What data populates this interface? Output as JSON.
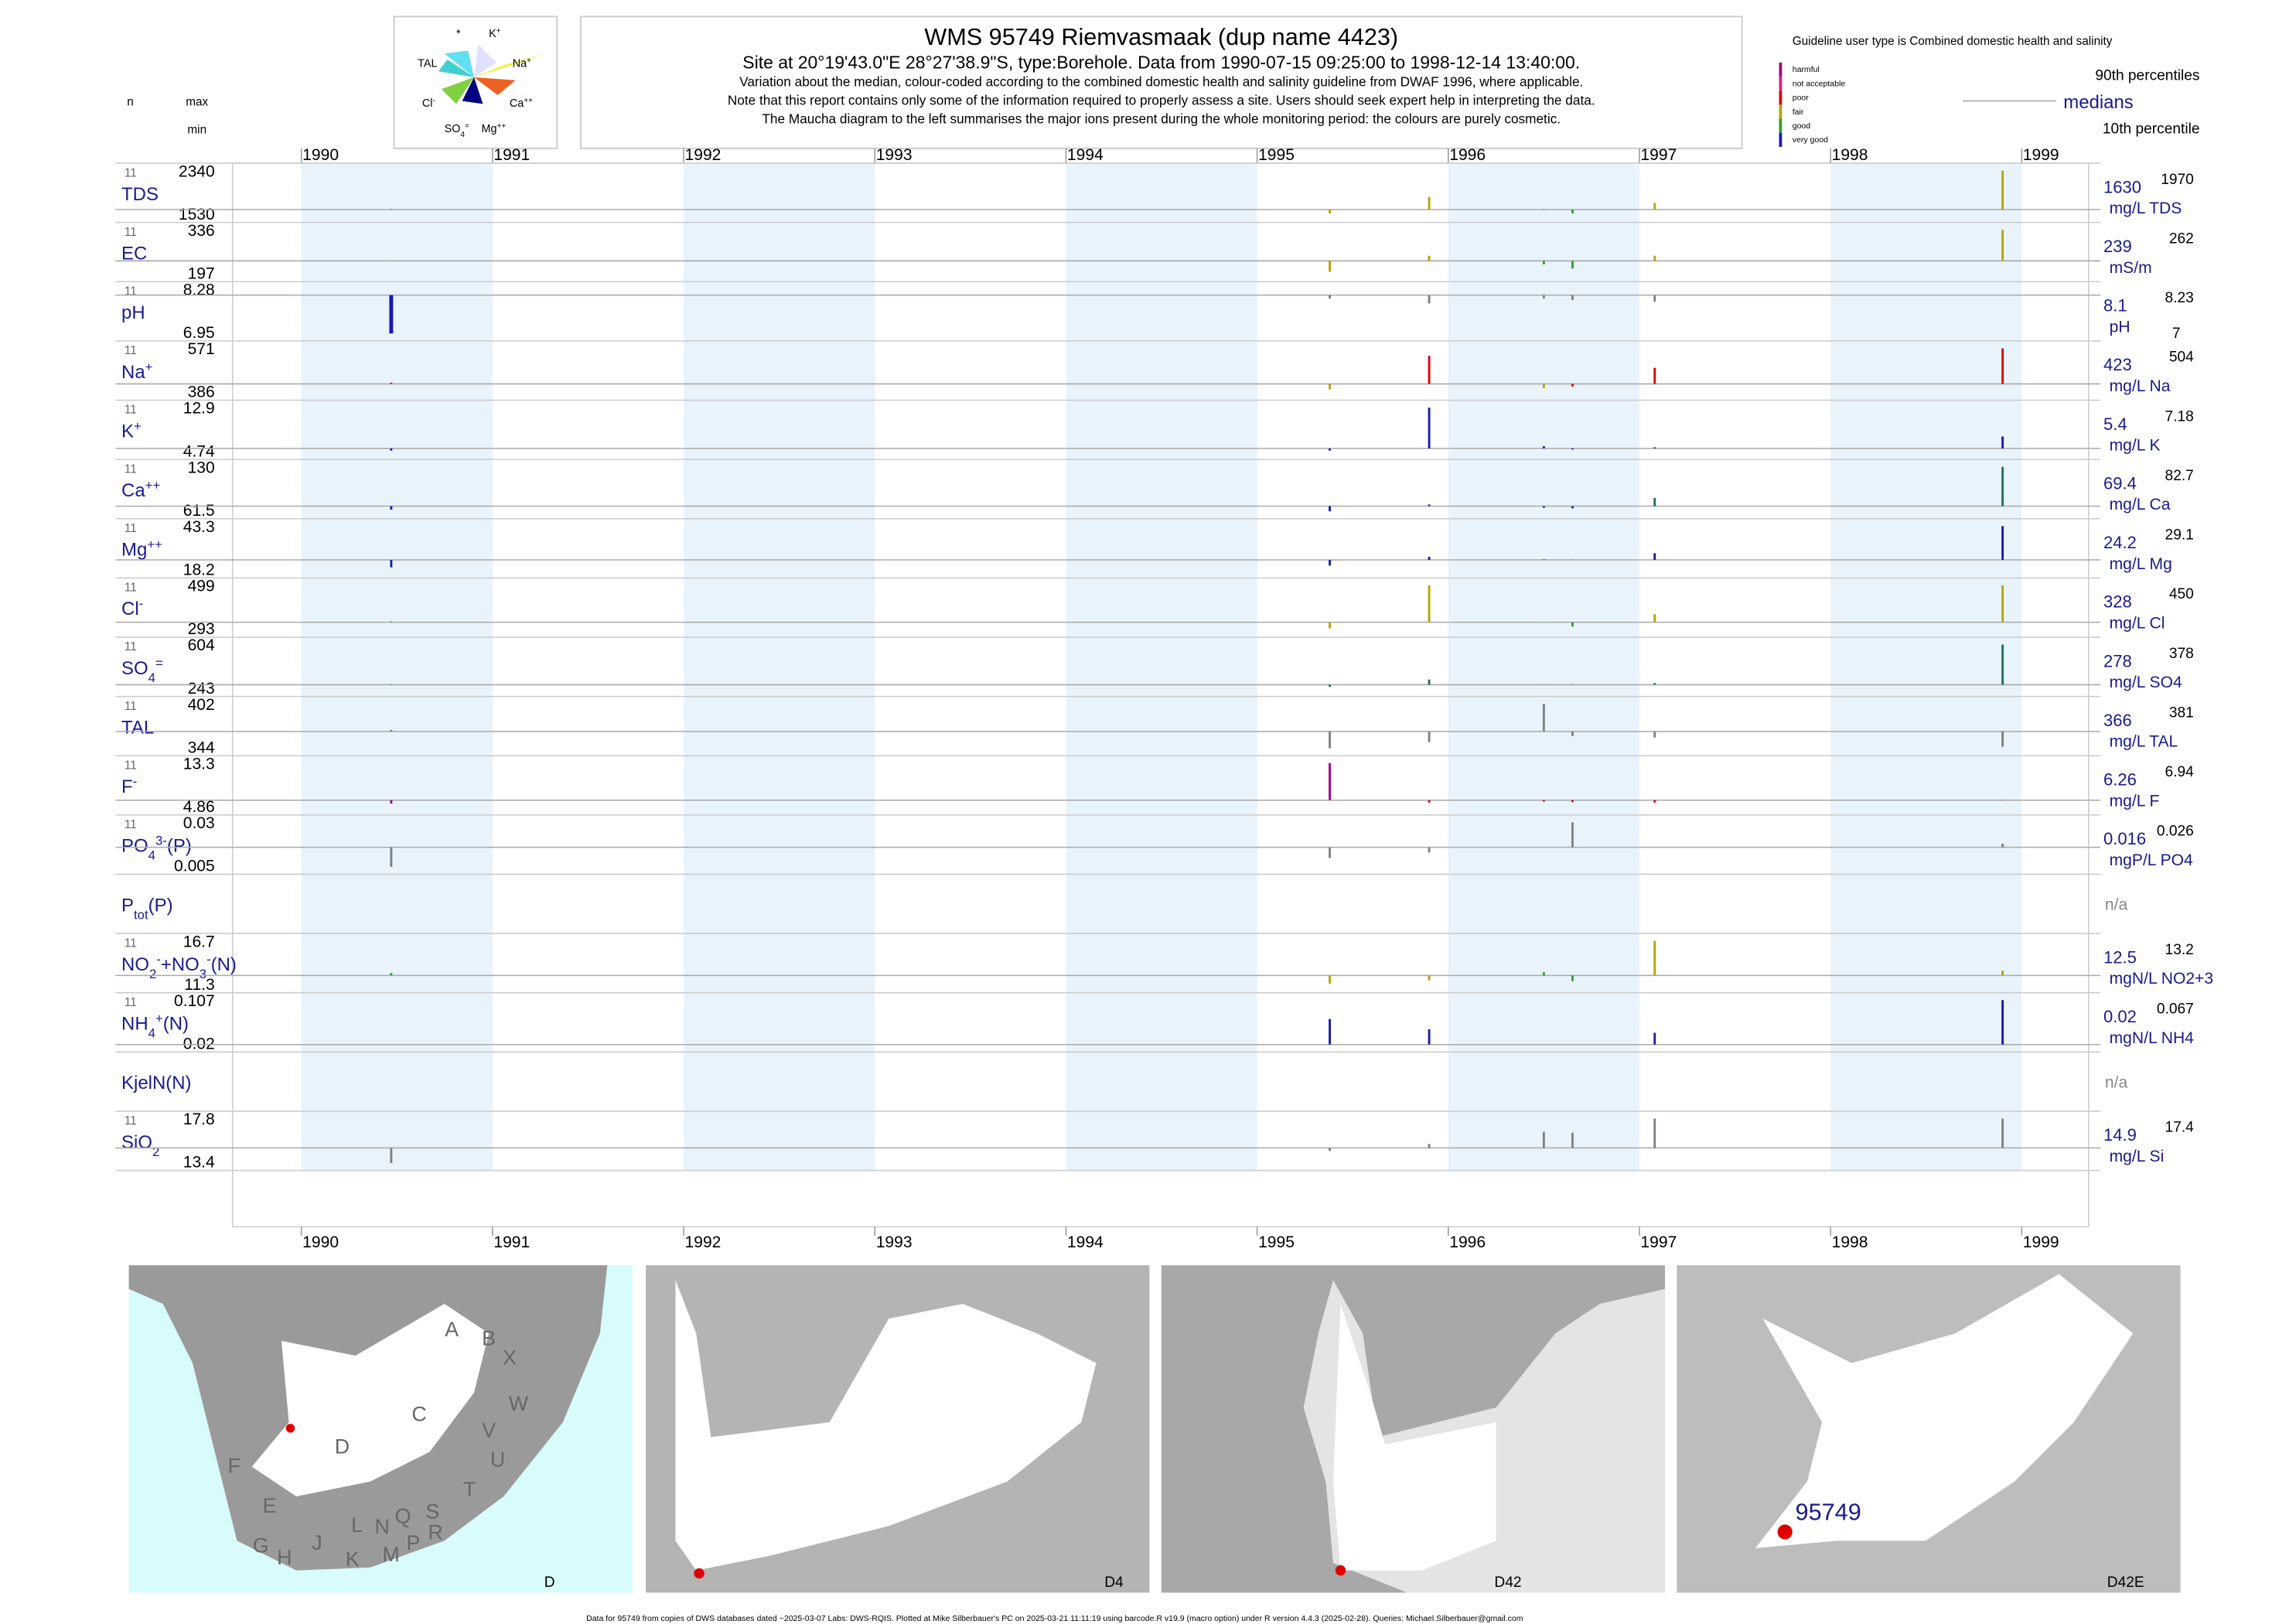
{
  "header": {
    "title": "WMS 95749  Riemvasmaak (dup name 4423)",
    "subtitle": "Site at 20°19'43.0\"E 28°27'38.9\"S, type:Borehole.  Data from 1990-07-15 09:25:00 to 1998-12-14 13:40:00.",
    "notes": [
      "Variation about the median,  colour-coded according to the combined domestic health and salinity guideline from DWAF 1996, where applicable.",
      "Note that this report contains only some of the information required to properly assess a site. Users should seek expert help in interpreting the data.",
      "The Maucha diagram to the left summarises the major ions present during the whole monitoring period: the colours are purely cosmetic."
    ],
    "col_n": "n",
    "col_max": "max",
    "col_min": "min"
  },
  "maucha": {
    "labels": [
      [
        {
          "text": "*"
        }
      ],
      [
        {
          "text": "K"
        },
        {
          "text": "+",
          "pos": "sup"
        }
      ],
      [
        {
          "text": "TAL"
        }
      ],
      [
        {
          "text": "Na"
        },
        {
          "text": "+",
          "pos": "sup"
        }
      ],
      [
        {
          "text": "Cl"
        },
        {
          "text": "-",
          "pos": "sup"
        }
      ],
      [
        {
          "text": "Ca"
        },
        {
          "text": "++",
          "pos": "sup"
        }
      ],
      [
        {
          "text": "SO"
        },
        {
          "text": "4",
          "pos": "sub"
        },
        {
          "text": "=",
          "pos": "sup"
        }
      ],
      [
        {
          "text": "Mg"
        },
        {
          "text": "++",
          "pos": "sup"
        }
      ]
    ]
  },
  "legend": {
    "guideline": "Guideline user type is Combined domestic health and salinity",
    "classes": [
      {
        "name": "harmful",
        "color": "#a0008c"
      },
      {
        "name": "not acceptable",
        "color": "#e0207a"
      },
      {
        "name": "poor",
        "color": "#e00000"
      },
      {
        "name": "fair",
        "color": "#b8a400"
      },
      {
        "name": "good",
        "color": "#30a030"
      },
      {
        "name": "very good",
        "color": "#1a1ab0"
      }
    ],
    "p90": "90th percentiles",
    "median": "medians",
    "p10": "10th percentile"
  },
  "chart_data": {
    "type": "barcode",
    "xlim": [
      1989.64,
      1999.35
    ],
    "xticks": [
      1990,
      1991,
      1992,
      1993,
      1994,
      1995,
      1996,
      1997,
      1998,
      1999
    ],
    "shade": "#e8f3fc",
    "samples": [
      1990.47,
      1995.38,
      1995.9,
      1996.5,
      1996.65,
      1997.08,
      1998.9
    ],
    "rows": [
      {
        "label": [
          {
            "text": "TDS"
          }
        ],
        "n": 11,
        "max": 2340,
        "min": 1530,
        "median": 1630,
        "p90": 1970,
        "unit": "mg/L TDS",
        "values": [
          1640,
          1560,
          1860,
          1640,
          1560,
          1750,
          2340
        ],
        "colors": [
          "#30a030",
          "#b8a400",
          "#b8a400",
          "#30a030",
          "#30a030",
          "#b8a400",
          "#b8a400"
        ]
      },
      {
        "label": [
          {
            "text": "EC"
          }
        ],
        "n": 11,
        "max": 336,
        "min": 197,
        "median": 239,
        "p90": 262,
        "unit": "mS/m",
        "values": [
          240,
          205,
          255,
          228,
          215,
          255,
          336
        ],
        "colors": [
          "#30a030",
          "#b8a400",
          "#b8a400",
          "#30a030",
          "#30a030",
          "#b8a400",
          "#b8a400"
        ]
      },
      {
        "label": [
          {
            "text": "pH"
          }
        ],
        "n": 11,
        "max": 8.28,
        "min": 6.95,
        "median": 8.1,
        "p90": 8.23,
        "p10": 7,
        "unit": "pH",
        "values": [
          6.95,
          8.0,
          7.85,
          8.0,
          7.95,
          7.9,
          8.1
        ],
        "colors": [
          "#1a1ab0",
          "#808080",
          "#808080",
          "#808080",
          "#808080",
          "#808080",
          "#808080"
        ]
      },
      {
        "label": [
          {
            "text": "Na"
          },
          {
            "text": "+",
            "pos": "sup"
          }
        ],
        "n": 11,
        "max": 571,
        "min": 386,
        "median": 423,
        "p90": 504,
        "unit": "mg/L Na",
        "values": [
          428,
          400,
          540,
          405,
          412,
          490,
          571
        ],
        "colors": [
          "#e00000",
          "#b8a400",
          "#e00000",
          "#b8a400",
          "#e00000",
          "#e00000",
          "#e00000"
        ]
      },
      {
        "label": [
          {
            "text": "K"
          },
          {
            "text": "+",
            "pos": "sup"
          }
        ],
        "n": 11,
        "max": 12.9,
        "min": 4.74,
        "median": 5.4,
        "p90": 7.18,
        "unit": "mg/L K",
        "values": [
          5.0,
          5.0,
          12.9,
          5.8,
          5.2,
          5.6,
          7.6
        ],
        "colors": [
          "#1a1ab0",
          "#1a1ab0",
          "#1a1ab0",
          "#1a1ab0",
          "#1a1ab0",
          "#1a1ab0",
          "#1a1ab0"
        ]
      },
      {
        "label": [
          {
            "text": "Ca"
          },
          {
            "text": "++",
            "pos": "sup"
          }
        ],
        "n": 11,
        "max": 130,
        "min": 61.5,
        "median": 69.4,
        "p90": 82.7,
        "unit": "mg/L Ca",
        "values": [
          64,
          61.5,
          72,
          67,
          66,
          82,
          130
        ],
        "colors": [
          "#1a1ab0",
          "#1a1ab0",
          "#1a1ab0",
          "#1a1ab0",
          "#1a1ab0",
          "#207060",
          "#207060"
        ]
      },
      {
        "label": [
          {
            "text": "Mg"
          },
          {
            "text": "++",
            "pos": "sup"
          }
        ],
        "n": 11,
        "max": 43.3,
        "min": 18.2,
        "median": 24.2,
        "p90": 29.1,
        "unit": "mg/L Mg",
        "values": [
          20,
          21,
          26,
          24.5,
          24.3,
          28,
          43.3
        ],
        "colors": [
          "#1a1ab0",
          "#1a1ab0",
          "#1a1ab0",
          "#1a1ab0",
          "#1a1ab0",
          "#1a1ab0",
          "#1a1ab0"
        ]
      },
      {
        "label": [
          {
            "text": "Cl"
          },
          {
            "text": "-",
            "pos": "sup"
          }
        ],
        "n": 11,
        "max": 499,
        "min": 293,
        "median": 328,
        "p90": 450,
        "unit": "mg/L Cl",
        "values": [
          332,
          300,
          499,
          330,
          308,
          365,
          499
        ],
        "colors": [
          "#30a030",
          "#b8a400",
          "#b8a400",
          "#30a030",
          "#30a030",
          "#b8a400",
          "#b8a400"
        ]
      },
      {
        "label": [
          {
            "text": "SO"
          },
          {
            "text": "4",
            "pos": "sub"
          },
          {
            "text": "=",
            "pos": "sup"
          }
        ],
        "n": 11,
        "max": 604,
        "min": 243,
        "median": 278,
        "p90": 378,
        "unit": "mg/L SO4",
        "values": [
          282,
          260,
          320,
          281,
          275,
          292,
          604
        ],
        "colors": [
          "#207060",
          "#207060",
          "#207060",
          "#207060",
          "#207060",
          "#207060",
          "#207060"
        ]
      },
      {
        "label": [
          {
            "text": "TAL"
          }
        ],
        "n": 11,
        "max": 402,
        "min": 344,
        "median": 366,
        "p90": 381,
        "unit": "mg/L TAL",
        "values": [
          368,
          344,
          352,
          402,
          360,
          358,
          346
        ],
        "colors": [
          "#808080",
          "#808080",
          "#808080",
          "#808080",
          "#808080",
          "#808080",
          "#808080"
        ]
      },
      {
        "label": [
          {
            "text": "F"
          },
          {
            "text": "-",
            "pos": "sup"
          }
        ],
        "n": 11,
        "max": 13.3,
        "min": 4.86,
        "median": 6.26,
        "p90": 6.94,
        "unit": "mg/L F",
        "values": [
          5.6,
          13.3,
          5.8,
          6.0,
          5.9,
          5.8,
          6.3
        ],
        "colors": [
          "#a0008c",
          "#a0008c",
          "#e00000",
          "#e00000",
          "#e00000",
          "#e00000",
          "#e00000"
        ]
      },
      {
        "label": [
          {
            "text": "PO"
          },
          {
            "text": "4",
            "pos": "sub"
          },
          {
            "text": "3-",
            "pos": "sup"
          },
          {
            "text": "(P)"
          }
        ],
        "n": 11,
        "max": 0.03,
        "min": 0.005,
        "median": 0.016,
        "p90": 0.026,
        "unit": "mgP/L PO4",
        "values": [
          0.005,
          0.01,
          0.013,
          0.016,
          0.03,
          0.016,
          0.018
        ],
        "colors": [
          "#808080",
          "#808080",
          "#808080",
          "#808080",
          "#808080",
          "#808080",
          "#808080"
        ]
      },
      {
        "label": [
          {
            "text": "P"
          },
          {
            "text": "tot",
            "pos": "sub"
          },
          {
            "text": "(P)"
          }
        ],
        "status": "n/a"
      },
      {
        "label": [
          {
            "text": "NO"
          },
          {
            "text": "2",
            "pos": "sub"
          },
          {
            "text": "-",
            "pos": "sup"
          },
          {
            "text": "+NO"
          },
          {
            "text": "3",
            "pos": "sub"
          },
          {
            "text": "-",
            "pos": "sup"
          },
          {
            "text": "(N)"
          }
        ],
        "n": 11,
        "max": 16.7,
        "min": 11.3,
        "median": 12.5,
        "p90": 13.2,
        "unit": "mgN/L NO2+3",
        "values": [
          12.8,
          11.5,
          11.9,
          12.9,
          11.8,
          16.7,
          13.1
        ],
        "colors": [
          "#30a030",
          "#b8a400",
          "#b8a400",
          "#30a030",
          "#30a030",
          "#b8a400",
          "#b8a400"
        ]
      },
      {
        "label": [
          {
            "text": "NH"
          },
          {
            "text": "4",
            "pos": "sub"
          },
          {
            "text": "+",
            "pos": "sup"
          },
          {
            "text": "(N)"
          }
        ],
        "n": 11,
        "max": 0.107,
        "min": 0.02,
        "median": 0.02,
        "p90": 0.067,
        "unit": "mgN/L NH4",
        "values": [
          0.02,
          0.07,
          0.05,
          0.02,
          0.02,
          0.043,
          0.107
        ],
        "colors": [
          "#1a1ab0",
          "#1a1ab0",
          "#1a1ab0",
          "#1a1ab0",
          "#1a1ab0",
          "#1a1ab0",
          "#1a1ab0"
        ]
      },
      {
        "label": [
          {
            "text": "KjelN(N)"
          }
        ],
        "status": "n/a"
      },
      {
        "label": [
          {
            "text": "SiO"
          },
          {
            "text": "2",
            "pos": "sub"
          }
        ],
        "n": 11,
        "max": 17.8,
        "min": 13.4,
        "median": 14.9,
        "p90": 17.4,
        "unit": "mg/L Si",
        "values": [
          13.4,
          14.6,
          15.3,
          16.5,
          16.4,
          17.8,
          17.8
        ],
        "colors": [
          "#808080",
          "#808080",
          "#808080",
          "#808080",
          "#808080",
          "#808080",
          "#808080"
        ]
      }
    ]
  },
  "maps": {
    "letters": [
      "A",
      "B",
      "X",
      "W",
      "C",
      "V",
      "D",
      "U",
      "F",
      "T",
      "E",
      "S",
      "Q",
      "N",
      "L",
      "R",
      "G",
      "H",
      "J",
      "P",
      "K",
      "M"
    ],
    "panels": [
      "D",
      "D4",
      "D42",
      "D42E"
    ],
    "site": "95749"
  },
  "footer": "Data for 95749 from copies of DWS databases dated ~2025-03-07 Labs: DWS-RQIS. Plotted at Mike Silberbauer's PC on 2025-03-21 11:11:19 using barcode.R v19.9 (macro option) under R version 4.4.3 (2025-02-28). Queries: Michael.Silberbauer@gmail.com"
}
